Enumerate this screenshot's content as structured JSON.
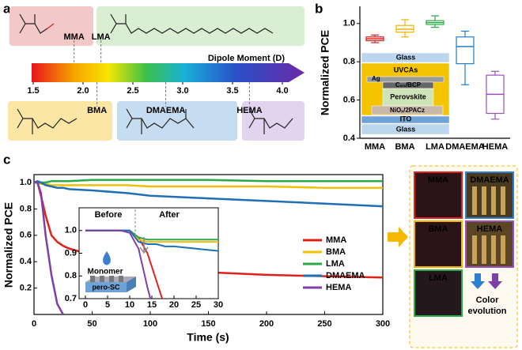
{
  "panel_labels": [
    "a",
    "b",
    "c"
  ],
  "dipole_scale": {
    "label": "Dipole Moment (D)",
    "lim": [
      1.5,
      4.0
    ],
    "ticks": [
      1.5,
      {
        "value": 2,
        "label": "2.0"
      },
      2.5,
      {
        "value": 3,
        "label": "3.0"
      },
      3.5,
      {
        "value": 4,
        "label": "4.0"
      }
    ],
    "monomers": [
      {
        "name": "MMA",
        "dipole": 1.91,
        "color": "#e0201b"
      },
      {
        "name": "LMA",
        "dipole": 2.18,
        "color": "#2aa84a"
      },
      {
        "name": "BMA",
        "dipole": 2.14,
        "color": "#f0a800"
      },
      {
        "name": "DMAEMA",
        "dipole": 2.83,
        "color": "#1f6fb5"
      },
      {
        "name": "HEMA",
        "dipole": 3.67,
        "color": "#7e3fa8"
      }
    ]
  },
  "device_stack": [
    "Glass",
    "UVCAs",
    "Ag",
    "C₆₀/BCP",
    "Perovskite",
    "NiOₓ/2PACz",
    "ITO",
    "Glass"
  ],
  "chart_data": [
    {
      "type": "box",
      "ylabel": "Normalized PCE",
      "categories": [
        "MMA",
        "BMA",
        "LMA",
        "DMAEMA",
        "HEMA"
      ],
      "colors": [
        "#e0201b",
        "#f0b400",
        "#2aa84a",
        "#1f7fc8",
        "#9a4fc0"
      ],
      "boxes": [
        {
          "min": 0.9,
          "q1": 0.91,
          "median": 0.92,
          "q3": 0.93,
          "max": 0.94
        },
        {
          "min": 0.93,
          "q1": 0.955,
          "median": 0.97,
          "q3": 0.99,
          "max": 1.02
        },
        {
          "min": 0.98,
          "q1": 0.995,
          "median": 1.005,
          "q3": 1.015,
          "max": 1.04
        },
        {
          "min": 0.68,
          "q1": 0.79,
          "median": 0.88,
          "q3": 0.93,
          "max": 0.96
        },
        {
          "min": 0.5,
          "q1": 0.53,
          "median": 0.63,
          "q3": 0.73,
          "max": 0.75
        }
      ],
      "ylim": [
        0.4,
        1.09
      ],
      "yticks": [
        0.4,
        0.6,
        0.8,
        {
          "value": 1,
          "label": "1.0"
        }
      ]
    },
    {
      "type": "line",
      "xlabel": "Time (s)",
      "ylabel": "Normalized PCE",
      "x": [
        0,
        3,
        6,
        10,
        15,
        20,
        25,
        30,
        50,
        80,
        100,
        150,
        200,
        250,
        300
      ],
      "series": [
        {
          "name": "MMA",
          "color": "#e0201b",
          "values": [
            1.0,
            1.0,
            0.9,
            0.75,
            0.6,
            0.55,
            0.52,
            0.5,
            0.45,
            0.4,
            0.37,
            0.32,
            0.3,
            0.29,
            0.28
          ]
        },
        {
          "name": "BMA",
          "color": "#f0c000",
          "values": [
            1.0,
            1.0,
            0.99,
            0.99,
            0.98,
            0.98,
            0.98,
            0.98,
            0.98,
            0.98,
            0.97,
            0.97,
            0.97,
            0.96,
            0.96
          ]
        },
        {
          "name": "LMA",
          "color": "#2aa84a",
          "values": [
            1.0,
            1.0,
            1.0,
            1.0,
            1.01,
            1.01,
            1.01,
            1.01,
            1.02,
            1.02,
            1.02,
            1.02,
            1.01,
            1.01,
            1.01
          ]
        },
        {
          "name": "DMAEMA",
          "color": "#1f6fb5",
          "values": [
            1.0,
            1.01,
            1.0,
            0.98,
            0.97,
            0.96,
            0.96,
            0.95,
            0.94,
            0.92,
            0.9,
            0.88,
            0.86,
            0.84,
            0.82
          ]
        },
        {
          "name": "HEMA",
          "color": "#7e3fa8",
          "values": [
            1.0,
            1.0,
            0.92,
            0.6,
            0.3,
            0.08,
            0.0,
            null,
            null,
            null,
            null,
            null,
            null,
            null,
            null
          ]
        }
      ],
      "xlim": [
        0,
        300
      ],
      "xticks": [
        0,
        50,
        100,
        150,
        200,
        250,
        300
      ],
      "ylim": [
        0,
        1.06
      ],
      "yticks": [
        0.2,
        0.4,
        0.6,
        0.8,
        {
          "value": 1,
          "label": "1.0"
        }
      ]
    },
    {
      "type": "line",
      "annotations": [
        "Before",
        "After",
        "Monomer",
        "pero-SC"
      ],
      "x": [
        0,
        2,
        4,
        6,
        8,
        10,
        12,
        14,
        16,
        18,
        20,
        25,
        30
      ],
      "series": [
        {
          "color": "#e0201b",
          "values": [
            1.0,
            1.0,
            1.0,
            1.0,
            1.0,
            1.0,
            0.97,
            0.9,
            0.78,
            0.66,
            null,
            null,
            null
          ]
        },
        {
          "color": "#f0c000",
          "values": [
            1.0,
            1.0,
            1.0,
            1.0,
            1.0,
            1.0,
            0.96,
            0.95,
            0.95,
            0.95,
            0.95,
            0.95,
            0.95
          ]
        },
        {
          "color": "#2aa84a",
          "values": [
            1.0,
            1.0,
            1.0,
            1.0,
            1.0,
            1.0,
            0.97,
            0.96,
            0.96,
            0.96,
            0.96,
            0.96,
            0.96
          ]
        },
        {
          "color": "#1f6fb5",
          "values": [
            1.0,
            1.0,
            1.0,
            1.0,
            1.0,
            1.0,
            0.95,
            0.94,
            0.94,
            0.93,
            0.93,
            0.92,
            0.91
          ]
        },
        {
          "color": "#7e3fa8",
          "values": [
            1.0,
            1.0,
            1.0,
            1.0,
            1.0,
            0.99,
            0.92,
            0.75,
            0.6,
            null,
            null,
            null,
            null
          ]
        }
      ],
      "xlim": [
        0,
        30
      ],
      "xticks": [
        0,
        5,
        10,
        15,
        20,
        25,
        30
      ],
      "ylim": [
        0.7,
        1.1
      ],
      "yticks": [
        0.7,
        0.8,
        0.9,
        {
          "value": 1,
          "label": "1.0"
        }
      ]
    }
  ],
  "photos": {
    "labels": [
      "MMA",
      "DMAEMA",
      "BMA",
      "HEMA",
      "LMA"
    ],
    "caption": [
      "Color",
      "evolution"
    ]
  }
}
